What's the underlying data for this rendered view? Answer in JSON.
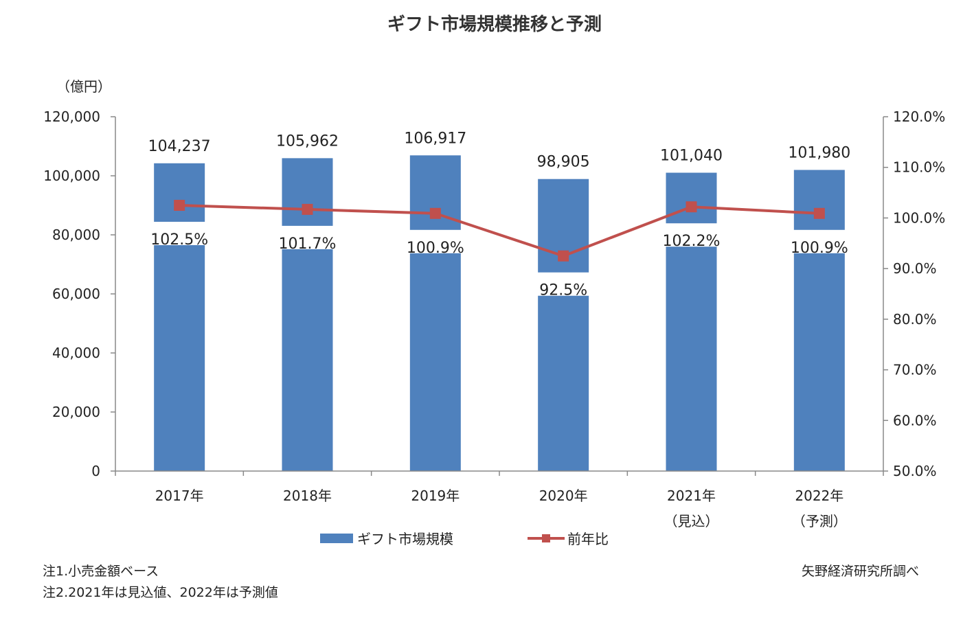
{
  "chart_data": {
    "type": "bar",
    "title": "ギフト市場規模推移と予測",
    "y_unit_label": "（億円）",
    "categories": [
      "2017年",
      "2018年",
      "2019年",
      "2020年",
      "2021年",
      "2022年"
    ],
    "category_sublabels": [
      "",
      "",
      "",
      "",
      "（見込）",
      "（予測）"
    ],
    "series": [
      {
        "name": "ギフト市場規模",
        "type": "bar",
        "axis": "left",
        "color": "#4F81BD",
        "values": [
          104237,
          105962,
          106917,
          98905,
          101040,
          101980
        ],
        "labels": [
          "104,237",
          "105,962",
          "106,917",
          "98,905",
          "101,040",
          "101,980"
        ]
      },
      {
        "name": "前年比",
        "type": "line",
        "axis": "right",
        "color": "#C0504D",
        "marker": "square",
        "values": [
          102.5,
          101.7,
          100.9,
          92.5,
          102.2,
          100.9
        ],
        "labels": [
          "102.5%",
          "101.7%",
          "100.9%",
          "92.5%",
          "102.2%",
          "100.9%"
        ]
      }
    ],
    "y_left": {
      "ylim": [
        0,
        120000
      ],
      "ticks": [
        0,
        20000,
        40000,
        60000,
        80000,
        100000,
        120000
      ],
      "tick_labels": [
        "0",
        "20,000",
        "40,000",
        "60,000",
        "80,000",
        "100,000",
        "120,000"
      ]
    },
    "y_right": {
      "ylim": [
        50,
        120
      ],
      "ticks": [
        50,
        60,
        70,
        80,
        90,
        100,
        110,
        120
      ],
      "tick_labels": [
        "50.0%",
        "60.0%",
        "70.0%",
        "80.0%",
        "90.0%",
        "100.0%",
        "110.0%",
        "120.0%"
      ]
    },
    "grid": false,
    "legend_position": "bottom"
  },
  "notes": [
    "注1.小売金額ベース",
    "注2.2021年は見込値、2022年は予測値"
  ],
  "source": "矢野経済研究所調べ"
}
